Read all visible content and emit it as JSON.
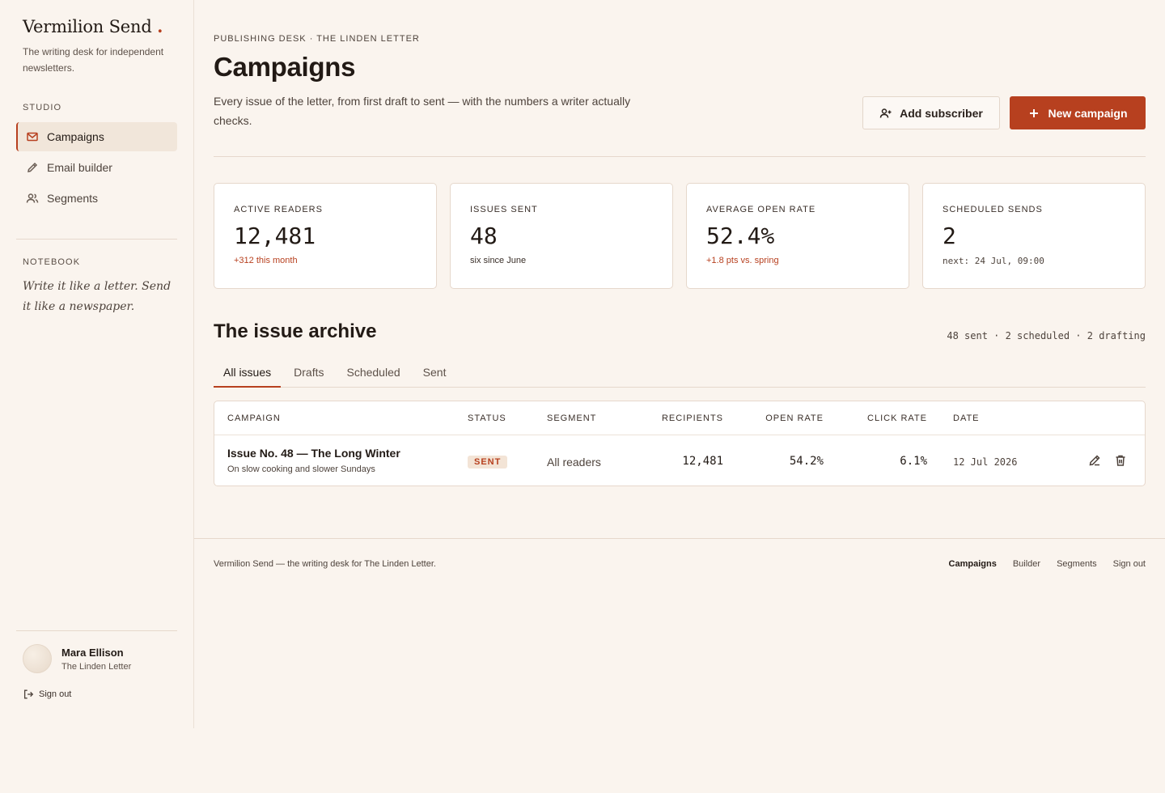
{
  "brand": {
    "name": "Vermilion Send",
    "dot": ".",
    "tagline": "The writing desk for independent newsletters."
  },
  "sidebar": {
    "studio_label": "STUDIO",
    "items": [
      {
        "label": "Campaigns",
        "icon": "mail-icon",
        "active": true
      },
      {
        "label": "Email builder",
        "icon": "pen-icon",
        "active": false
      },
      {
        "label": "Segments",
        "icon": "users-icon",
        "active": false
      }
    ],
    "notebook_label": "NOTEBOOK",
    "notebook_text": "Write it like a letter. Send it like a newspaper.",
    "user": {
      "name": "Mara Ellison",
      "publication": "The Linden Letter"
    },
    "sign_out": "Sign out"
  },
  "header": {
    "eyebrow": "PUBLISHING DESK · THE LINDEN LETTER",
    "title": "Campaigns",
    "subtitle": "Every issue of the letter, from first draft to sent — with the numbers a writer actually checks.",
    "add_subscriber": "Add subscriber",
    "new_campaign": "New campaign"
  },
  "stats": [
    {
      "label": "ACTIVE READERS",
      "value": "12,481",
      "note": "+312 this month",
      "note_style": "accent"
    },
    {
      "label": "ISSUES SENT",
      "value": "48",
      "note": "six since June",
      "note_style": "plain"
    },
    {
      "label": "AVERAGE OPEN RATE",
      "value": "52.4%",
      "note": "+1.8 pts vs. spring",
      "note_style": "accent"
    },
    {
      "label": "SCHEDULED SENDS",
      "value": "2",
      "note": "next: 24 Jul, 09:00",
      "note_style": "mono"
    }
  ],
  "archive": {
    "title": "The issue archive",
    "counts": "48 sent · 2 scheduled · 2 drafting",
    "tabs": [
      "All issues",
      "Drafts",
      "Scheduled",
      "Sent"
    ],
    "active_tab": "All issues",
    "columns": [
      "CAMPAIGN",
      "STATUS",
      "SEGMENT",
      "RECIPIENTS",
      "OPEN RATE",
      "CLICK RATE",
      "DATE"
    ],
    "rows": [
      {
        "name": "Issue No. 48 — The Long Winter",
        "subtitle": "On slow cooking and slower Sundays",
        "status": "SENT",
        "segment": "All readers",
        "recipients": "12,481",
        "open_rate": "54.2%",
        "click_rate": "6.1%",
        "date": "12 Jul 2026"
      }
    ]
  },
  "footer": {
    "text": "Vermilion Send — the writing desk for The Linden Letter.",
    "links": [
      "Campaigns",
      "Builder",
      "Segments",
      "Sign out"
    ]
  },
  "colors": {
    "accent": "#b7401f",
    "background": "#faf4ee",
    "card": "#ffffff",
    "border": "#e6d8cc"
  }
}
